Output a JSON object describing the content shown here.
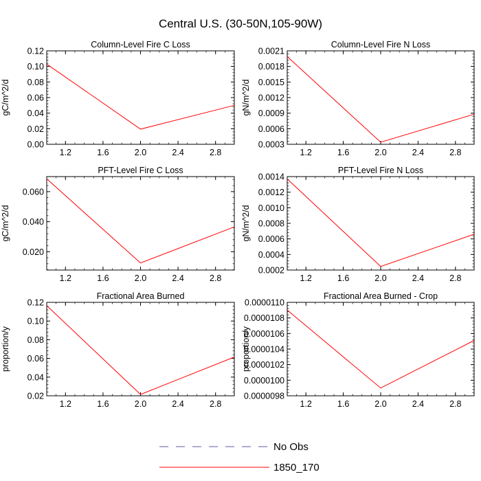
{
  "figure": {
    "title": "Central U.S. (30-50N,105-90W)",
    "line_color": "#ff0000",
    "dash_color": "#5a5aa0"
  },
  "legend": [
    {
      "label": "No Obs",
      "style": "dashed",
      "color": "#5a5aa0"
    },
    {
      "label": "1850_170",
      "style": "solid",
      "color": "#ff0000"
    }
  ],
  "chart_data": [
    {
      "type": "line",
      "title": "Column-Level Fire C Loss",
      "xlabel": "",
      "ylabel": "gC/m^2/d",
      "xlim": [
        1.0,
        3.0
      ],
      "ylim": [
        0.0,
        0.12
      ],
      "xticks": [
        "1.2",
        "1.6",
        "2.0",
        "2.4",
        "2.8"
      ],
      "yticks": [
        "0.00",
        "0.02",
        "0.04",
        "0.06",
        "0.08",
        "0.10",
        "0.12"
      ],
      "series": [
        {
          "name": "1850_170",
          "x": [
            1,
            2,
            3
          ],
          "values": [
            0.103,
            0.0195,
            0.05
          ]
        }
      ]
    },
    {
      "type": "line",
      "title": "Column-Level Fire N Loss",
      "xlabel": "",
      "ylabel": "gN/m^2/d",
      "xlim": [
        1.0,
        3.0
      ],
      "ylim": [
        0.0003,
        0.0021
      ],
      "xticks": [
        "1.2",
        "1.6",
        "2.0",
        "2.4",
        "2.8"
      ],
      "yticks": [
        "0.0003",
        "0.0006",
        "0.0009",
        "0.0012",
        "0.0015",
        "0.0018",
        "0.0021"
      ],
      "series": [
        {
          "name": "1850_170",
          "x": [
            1,
            2,
            3
          ],
          "values": [
            0.00199,
            0.00034,
            0.00088
          ]
        }
      ]
    },
    {
      "type": "line",
      "title": "PFT-Level Fire C Loss",
      "xlabel": "",
      "ylabel": "gC/m^2/d",
      "xlim": [
        1.0,
        3.0
      ],
      "ylim": [
        0.0078,
        0.07
      ],
      "xticks": [
        "1.2",
        "1.6",
        "2.0",
        "2.4",
        "2.8"
      ],
      "yticks": [
        "0.020",
        "0.040",
        "0.060"
      ],
      "series": [
        {
          "name": "1850_170",
          "x": [
            1,
            2,
            3
          ],
          "values": [
            0.0685,
            0.0125,
            0.0365
          ]
        }
      ]
    },
    {
      "type": "line",
      "title": "PFT-Level Fire N Loss",
      "xlabel": "",
      "ylabel": "gN/m^2/d",
      "xlim": [
        1.0,
        3.0
      ],
      "ylim": [
        0.0002,
        0.0014
      ],
      "xticks": [
        "1.2",
        "1.6",
        "2.0",
        "2.4",
        "2.8"
      ],
      "yticks": [
        "0.0002",
        "0.0004",
        "0.0006",
        "0.0008",
        "0.0010",
        "0.0012",
        "0.0014"
      ],
      "series": [
        {
          "name": "1850_170",
          "x": [
            1,
            2,
            3
          ],
          "values": [
            0.00137,
            0.000246,
            0.00066
          ]
        }
      ]
    },
    {
      "type": "line",
      "title": "Fractional Area Burned",
      "xlabel": "",
      "ylabel": "proportion/y",
      "xlim": [
        1.0,
        3.0
      ],
      "ylim": [
        0.02,
        0.12
      ],
      "xticks": [
        "1.2",
        "1.6",
        "2.0",
        "2.4",
        "2.8"
      ],
      "yticks": [
        "0.02",
        "0.04",
        "0.06",
        "0.08",
        "0.10",
        "0.12"
      ],
      "series": [
        {
          "name": "1850_170",
          "x": [
            1,
            2,
            3
          ],
          "values": [
            0.1165,
            0.0215,
            0.0615
          ]
        }
      ]
    },
    {
      "type": "line",
      "title": "Fractional Area Burned - Crop",
      "xlabel": "",
      "ylabel": "proportion/y",
      "xlim": [
        1.0,
        3.0
      ],
      "ylim": [
        9.8e-06,
        1.1e-05
      ],
      "xticks": [
        "1.2",
        "1.6",
        "2.0",
        "2.4",
        "2.8"
      ],
      "yticks": [
        "0.0000098",
        "0.0000100",
        "0.0000102",
        "0.0000104",
        "0.0000106",
        "0.0000108",
        "0.0000110"
      ],
      "series": [
        {
          "name": "1850_170",
          "x": [
            1,
            2,
            3
          ],
          "values": [
            1.09e-05,
            9.9e-06,
            1.051e-05
          ]
        }
      ]
    }
  ]
}
